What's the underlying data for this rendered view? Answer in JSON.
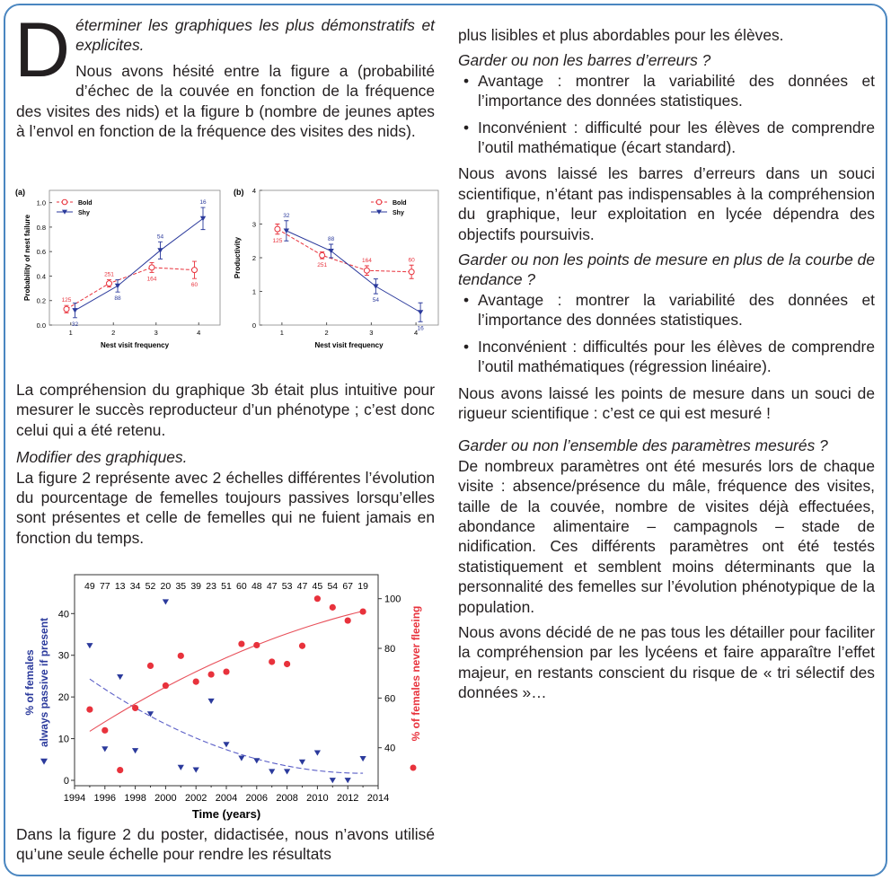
{
  "left": {
    "dropcap": "D",
    "heading": "éterminer les graphiques les plus démonstratifs et explicites.",
    "p1": "Nous avons hésité entre la figure a (probabilité d’échec de la couvée en fonction de la fréquence des visites des nids) et la figure b (nombre de jeunes aptes à l’envol en fonction de la fréquence des visites des nids).",
    "p2": "La compréhension du graphique 3b était plus intuitive pour mesurer le succès reproducteur d’un phénotype ; c’est donc celui qui a été retenu.",
    "h2": "Modifier des graphiques.",
    "p3": "La figure 2 représente avec 2 échelles différentes l’évolution du pourcentage de femelles toujours passives lorsqu’elles sont présentes et celle de femelles qui ne fuient jamais en fonction du temps.",
    "p4": "Dans la figure 2 du poster, didactisée, nous n’avons utilisé qu’une seule échelle pour rendre les résultats"
  },
  "right": {
    "p0": "plus lisibles et plus abordables pour les élèves.",
    "q1": "Garder ou non les barres d’erreurs ?",
    "q1_bullets": [
      "Avantage : montrer la variabilité des données et l’importance des données statistiques.",
      "Inconvénient : difficulté pour les élèves de comprendre l’outil mathématique (écart standard)."
    ],
    "p1": "Nous avons laissé les barres d’erreurs dans un souci scientifique, n’étant pas indispensables à la compréhension du graphique, leur exploitation en lycée dépendra des objectifs poursuivis.",
    "q2": "Garder ou non les points de mesure en plus de la courbe de tendance ?",
    "q2_bullets": [
      "Avantage : montrer la variabilité des données et l’importance des données statistiques.",
      "Inconvénient : difficultés pour les élèves de comprendre l’outil mathématiques (régression linéaire)."
    ],
    "p2": "Nous avons laissé les points de mesure dans un souci de rigueur scientifique : c’est ce qui est mesuré !",
    "q3": "Garder ou non l’ensemble des paramètres mesurés ?",
    "p3": "De nombreux paramètres ont été mesurés lors de chaque visite : absence/présence du mâle, fréquence des visites, taille de la couvée, nombre de visites déjà effectuées, abondance alimentaire – campagnols – stade de nidification. Ces différents paramètres ont été testés statistiquement et semblent moins déterminants que la personnalité des femelles sur l’évolution phénotypique de la population.",
    "p4": "Nous avons décidé de ne pas tous les détailler pour faciliter la compréhension par les lycéens et faire apparaître l’effet majeur, en restants conscient du risque de « tri sélectif des données »…"
  },
  "colors": {
    "frame": "#4a86c0",
    "bold": "#e8323c",
    "shy": "#2b3a9c"
  },
  "chart_data": [
    {
      "type": "line",
      "panel": "(a)",
      "xlabel": "Nest visit frequency",
      "ylabel": "Probability of nest failure",
      "x": [
        1,
        2,
        3,
        4
      ],
      "xlim": [
        0.5,
        4.5
      ],
      "ylim": [
        0,
        1.1
      ],
      "yticks": [
        "0.0",
        "0.2",
        "0.4",
        "0.6",
        "0.8",
        "1.0"
      ],
      "legend": "top-left",
      "series": [
        {
          "name": "Bold",
          "values": [
            0.13,
            0.34,
            0.47,
            0.45
          ],
          "errors": [
            0.03,
            0.03,
            0.04,
            0.07
          ],
          "n": [
            "125",
            "251",
            "164",
            "60"
          ],
          "style": "dashed, open circle"
        },
        {
          "name": "Shy",
          "values": [
            0.12,
            0.32,
            0.61,
            0.87
          ],
          "errors": [
            0.06,
            0.05,
            0.07,
            0.09
          ],
          "n": [
            "32",
            "88",
            "54",
            "16"
          ],
          "style": "solid, filled triangle"
        }
      ]
    },
    {
      "type": "line",
      "panel": "(b)",
      "xlabel": "Nest visit frequency",
      "ylabel": "Productivity",
      "x": [
        1,
        2,
        3,
        4
      ],
      "xlim": [
        0.5,
        4.5
      ],
      "ylim": [
        0,
        4
      ],
      "yticks": [
        "0",
        "1",
        "2",
        "3",
        "4"
      ],
      "legend": "top-right",
      "series": [
        {
          "name": "Bold",
          "values": [
            2.85,
            2.07,
            1.62,
            1.58
          ],
          "errors": [
            0.15,
            0.1,
            0.14,
            0.2
          ],
          "n": [
            "125",
            "251",
            "164",
            "60"
          ],
          "style": "dashed, open circle"
        },
        {
          "name": "Shy",
          "values": [
            2.8,
            2.2,
            1.15,
            0.38
          ],
          "errors": [
            0.3,
            0.2,
            0.22,
            0.28
          ],
          "n": [
            "32",
            "88",
            "54",
            "16"
          ],
          "style": "solid, filled triangle"
        }
      ]
    },
    {
      "type": "scatter",
      "xlabel": "Time (years)",
      "ylabel_left": "% of females always passive if present",
      "ylabel_right": "% of females never fleeing",
      "xlim": [
        1994,
        2014
      ],
      "xticks": [
        "1994",
        "1996",
        "1998",
        "2000",
        "2002",
        "2004",
        "2006",
        "2008",
        "2010",
        "2012",
        "2014"
      ],
      "ylim_left": [
        -1,
        49
      ],
      "yticks_left": [
        "0",
        "10",
        "20",
        "30",
        "40"
      ],
      "ylim_right": [
        26,
        110
      ],
      "yticks_right": [
        "40",
        "60",
        "80",
        "100"
      ],
      "x": [
        1995,
        1996,
        1997,
        1998,
        1999,
        2000,
        2001,
        2002,
        2003,
        2004,
        2005,
        2006,
        2007,
        2008,
        2009,
        2010,
        2011,
        2012,
        2013
      ],
      "sample_sizes": [
        "49",
        "77",
        "13",
        "34",
        "52",
        "20",
        "35",
        "39",
        "23",
        "51",
        "60",
        "48",
        "47",
        "53",
        "47",
        "45",
        "54",
        "67",
        "19"
      ],
      "series": [
        {
          "axis": "left",
          "marker": "triangle",
          "values": [
            32.3,
            7.5,
            24.8,
            7.1,
            15.9,
            42.8,
            3.1,
            2.5,
            19,
            8.6,
            5.3,
            4.7,
            2.1,
            2.1,
            4.4,
            6.6,
            0,
            0,
            5.2
          ],
          "trend": {
            "style": "dashed",
            "start": 24.3,
            "end": 1.7
          }
        },
        {
          "axis": "right",
          "marker": "circle",
          "values": [
            55.4,
            47,
            31,
            56,
            73,
            65,
            77,
            66.6,
            69.5,
            70.6,
            81.8,
            81.3,
            74.6,
            73.7,
            81,
            100,
            96.5,
            91.2,
            94.8
          ],
          "trend": {
            "style": "solid",
            "start": 46.6,
            "end": 95
          }
        }
      ]
    }
  ]
}
